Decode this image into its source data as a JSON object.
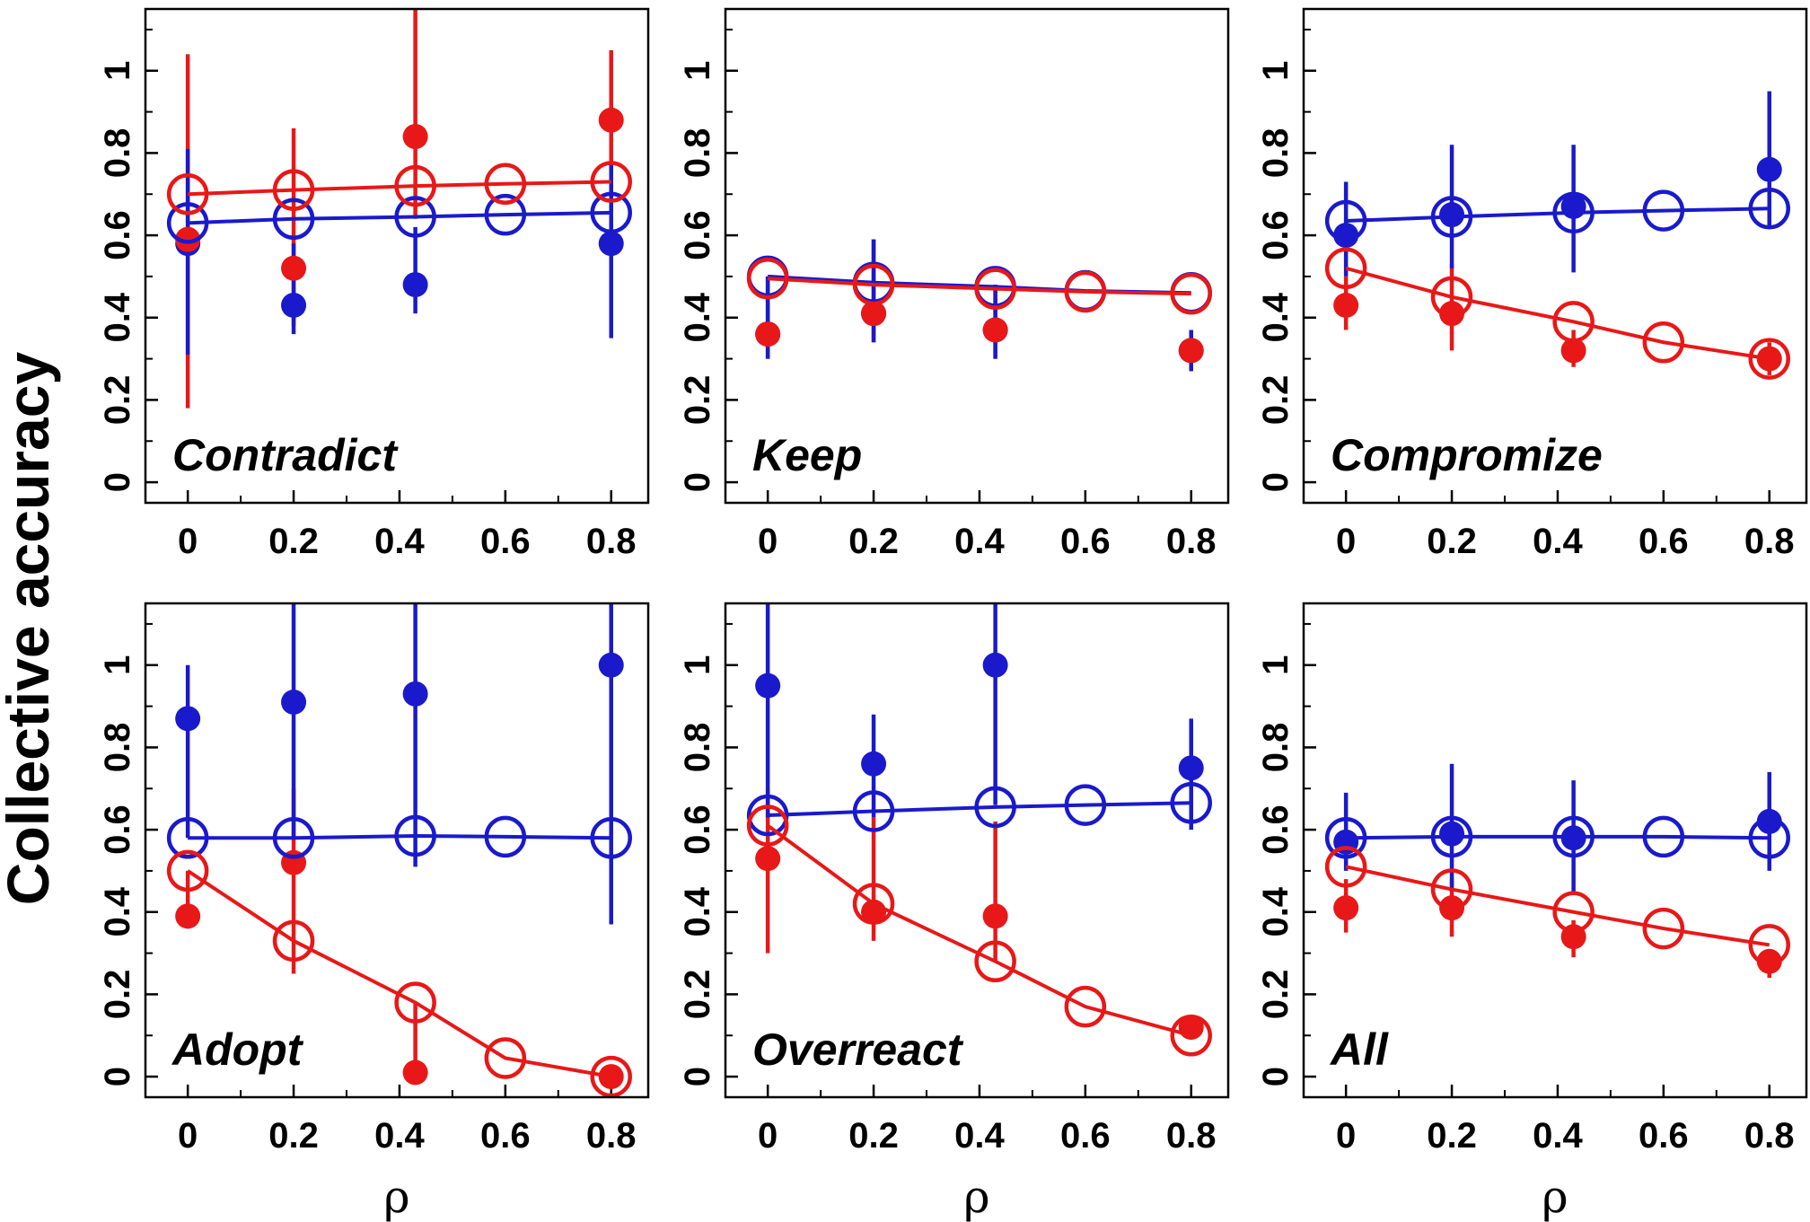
{
  "chart_data": {
    "type": "scatter",
    "ylabel": "Collective accuracy",
    "xlabel": "ρ",
    "xlim": [
      -0.08,
      0.87
    ],
    "ylim": [
      -0.05,
      1.15
    ],
    "xticks": [
      "0",
      "0.2",
      "0.4",
      "0.6",
      "0.8"
    ],
    "yticks": [
      "0",
      "0.2",
      "0.4",
      "0.6",
      "0.8",
      "1"
    ],
    "colors": {
      "blue": "#1a1acc",
      "red": "#e81818"
    },
    "panels": [
      {
        "label": "Contradict",
        "model": {
          "blue": {
            "x": [
              0,
              0.2,
              0.43,
              0.6,
              0.8
            ],
            "y": [
              0.63,
              0.64,
              0.645,
              0.65,
              0.655
            ]
          },
          "red": {
            "x": [
              0,
              0.2,
              0.43,
              0.6,
              0.8
            ],
            "y": [
              0.7,
              0.71,
              0.72,
              0.725,
              0.73
            ]
          }
        },
        "data": {
          "blue": {
            "x": [
              0,
              0.2,
              0.43,
              0.8
            ],
            "y": [
              0.58,
              0.43,
              0.48,
              0.58
            ],
            "lo": [
              0.31,
              0.36,
              0.41,
              0.35
            ],
            "hi": [
              0.81,
              0.58,
              0.62,
              0.78
            ]
          },
          "red": {
            "x": [
              0,
              0.2,
              0.43,
              0.8
            ],
            "y": [
              0.59,
              0.52,
              0.84,
              0.88
            ],
            "lo": [
              0.18,
              0.38,
              0.64,
              0.7
            ],
            "hi": [
              1.04,
              0.86,
              1.15,
              1.05
            ]
          }
        }
      },
      {
        "label": "Keep",
        "model": {
          "blue": {
            "x": [
              0,
              0.2,
              0.43,
              0.6,
              0.8
            ],
            "y": [
              0.5,
              0.485,
              0.475,
              0.465,
              0.46
            ]
          },
          "red": {
            "x": [
              0,
              0.2,
              0.43,
              0.6,
              0.8
            ],
            "y": [
              0.495,
              0.48,
              0.47,
              0.463,
              0.458
            ]
          }
        },
        "data": {
          "blue": {
            "x": [
              0,
              0.2,
              0.43,
              0.8
            ],
            "y": [
              0.36,
              0.41,
              0.37,
              0.32
            ],
            "lo": [
              0.3,
              0.34,
              0.3,
              0.27
            ],
            "hi": [
              0.5,
              0.59,
              0.48,
              0.37
            ]
          },
          "red": {
            "x": [
              0,
              0.2,
              0.43,
              0.8
            ],
            "y": [
              0.36,
              0.41,
              0.37,
              0.32
            ],
            "lo": [
              0.3,
              0.34,
              0.3,
              0.27
            ],
            "hi": [
              0.5,
              0.59,
              0.48,
              0.37
            ]
          }
        }
      },
      {
        "label": "Compromize",
        "model": {
          "blue": {
            "x": [
              0,
              0.2,
              0.43,
              0.6,
              0.8
            ],
            "y": [
              0.635,
              0.645,
              0.655,
              0.66,
              0.665
            ]
          },
          "red": {
            "x": [
              0,
              0.2,
              0.43,
              0.6,
              0.8
            ],
            "y": [
              0.52,
              0.45,
              0.39,
              0.34,
              0.3
            ]
          }
        },
        "data": {
          "blue": {
            "x": [
              0,
              0.2,
              0.43,
              0.8
            ],
            "y": [
              0.6,
              0.65,
              0.67,
              0.76
            ],
            "lo": [
              0.5,
              0.52,
              0.51,
              0.62
            ],
            "hi": [
              0.73,
              0.82,
              0.82,
              0.95
            ]
          },
          "red": {
            "x": [
              0,
              0.2,
              0.43,
              0.8
            ],
            "y": [
              0.43,
              0.41,
              0.32,
              0.3
            ],
            "lo": [
              0.37,
              0.32,
              0.28,
              0.26
            ],
            "hi": [
              0.5,
              0.53,
              0.37,
              0.34
            ]
          }
        }
      },
      {
        "label": "Adopt",
        "model": {
          "blue": {
            "x": [
              0,
              0.2,
              0.43,
              0.6,
              0.8
            ],
            "y": [
              0.58,
              0.58,
              0.585,
              0.583,
              0.58
            ]
          },
          "red": {
            "x": [
              0,
              0.2,
              0.43,
              0.6,
              0.8
            ],
            "y": [
              0.5,
              0.33,
              0.18,
              0.045,
              0.0
            ]
          }
        },
        "data": {
          "blue": {
            "x": [
              0,
              0.2,
              0.43,
              0.8
            ],
            "y": [
              0.87,
              0.91,
              0.93,
              1.0
            ],
            "lo": [
              0.58,
              0.58,
              0.51,
              0.37
            ],
            "hi": [
              1.0,
              1.15,
              1.15,
              1.15
            ]
          },
          "red": {
            "x": [
              0,
              0.2,
              0.43,
              0.8
            ],
            "y": [
              0.39,
              0.52,
              0.01,
              0.0
            ],
            "lo": [
              0.36,
              0.25,
              0.01,
              0.0
            ],
            "hi": [
              0.5,
              0.7,
              0.18,
              0.0
            ]
          }
        }
      },
      {
        "label": "Overreact",
        "model": {
          "blue": {
            "x": [
              0,
              0.2,
              0.43,
              0.6,
              0.8
            ],
            "y": [
              0.635,
              0.645,
              0.655,
              0.66,
              0.665
            ]
          },
          "red": {
            "x": [
              0,
              0.2,
              0.43,
              0.6,
              0.8
            ],
            "y": [
              0.61,
              0.42,
              0.28,
              0.17,
              0.1
            ]
          }
        },
        "data": {
          "blue": {
            "x": [
              0,
              0.2,
              0.43,
              0.8
            ],
            "y": [
              0.95,
              0.76,
              1.0,
              0.75
            ],
            "lo": [
              0.63,
              0.63,
              0.66,
              0.6
            ],
            "hi": [
              1.15,
              0.88,
              1.15,
              0.87
            ]
          },
          "red": {
            "x": [
              0,
              0.2,
              0.43,
              0.8
            ],
            "y": [
              0.53,
              0.4,
              0.39,
              0.12
            ],
            "lo": [
              0.3,
              0.33,
              0.28,
              0.1
            ],
            "hi": [
              0.7,
              0.63,
              0.62,
              0.13
            ]
          }
        }
      },
      {
        "label": "All",
        "model": {
          "blue": {
            "x": [
              0,
              0.2,
              0.43,
              0.6,
              0.8
            ],
            "y": [
              0.58,
              0.583,
              0.583,
              0.583,
              0.58
            ]
          },
          "red": {
            "x": [
              0,
              0.2,
              0.43,
              0.6,
              0.8
            ],
            "y": [
              0.51,
              0.455,
              0.4,
              0.36,
              0.32
            ]
          }
        },
        "data": {
          "blue": {
            "x": [
              0,
              0.2,
              0.43,
              0.8
            ],
            "y": [
              0.57,
              0.59,
              0.58,
              0.62
            ],
            "lo": [
              0.5,
              0.45,
              0.45,
              0.5
            ],
            "hi": [
              0.69,
              0.76,
              0.72,
              0.74
            ]
          },
          "red": {
            "x": [
              0,
              0.2,
              0.43,
              0.8
            ],
            "y": [
              0.41,
              0.41,
              0.34,
              0.28
            ],
            "lo": [
              0.35,
              0.34,
              0.29,
              0.24
            ],
            "hi": [
              0.48,
              0.48,
              0.38,
              0.31
            ]
          }
        }
      }
    ]
  }
}
